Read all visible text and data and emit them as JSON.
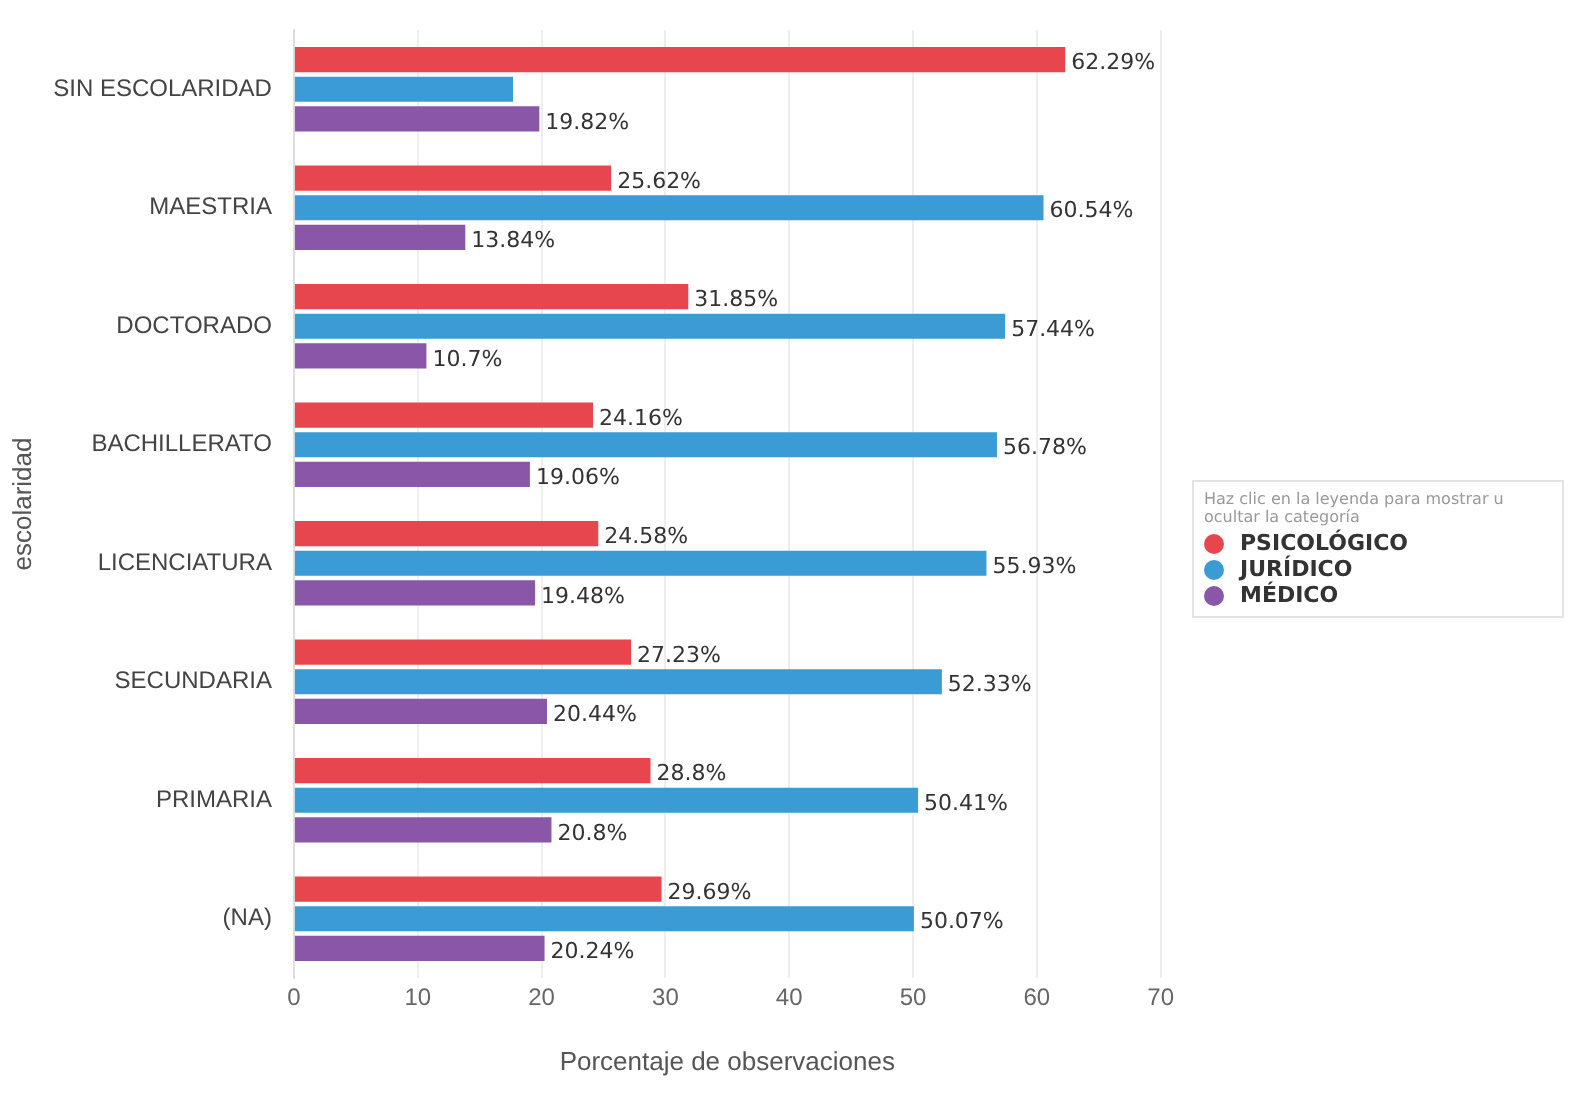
{
  "chart_data": {
    "type": "bar",
    "orientation": "horizontal",
    "xlabel": "Porcentaje de observaciones",
    "ylabel": "escolaridad",
    "legend_title": "Haz clic en la leyenda para mostrar u ocultar la categoría",
    "categories": [
      "SIN ESCOLARIDAD",
      "MAESTRIA",
      "DOCTORADO",
      "BACHILLERATO",
      "LICENCIATURA",
      "SECUNDARIA",
      "PRIMARIA",
      "(NA)"
    ],
    "series": [
      {
        "name": "PSICOLÓGICO",
        "color": "#e8464f",
        "values": [
          62.29,
          25.62,
          31.85,
          24.16,
          24.58,
          27.23,
          28.8,
          29.69
        ],
        "value_labels": [
          "62.29%",
          "25.62%",
          "31.85%",
          "24.16%",
          "24.58%",
          "27.23%",
          "28.8%",
          "29.69%"
        ]
      },
      {
        "name": "JURÍDICO",
        "color": "#3a9bd5",
        "values": [
          17.7,
          60.54,
          57.44,
          56.78,
          55.93,
          52.33,
          50.41,
          50.07
        ],
        "value_labels": [
          null,
          "60.54%",
          "57.44%",
          "56.78%",
          "55.93%",
          "52.33%",
          "50.41%",
          "50.07%"
        ]
      },
      {
        "name": "MÉDICO",
        "color": "#8a57a8",
        "values": [
          19.82,
          13.84,
          10.7,
          19.06,
          19.48,
          20.44,
          20.8,
          20.24
        ],
        "value_labels": [
          "19.82%",
          "13.84%",
          "10.7%",
          "19.06%",
          "19.48%",
          "20.44%",
          "20.8%",
          "20.24%"
        ]
      }
    ],
    "xlim": [
      0,
      70
    ],
    "xticks": [
      0,
      10,
      20,
      30,
      40,
      50,
      60,
      70
    ],
    "grid": "x",
    "legend": "right"
  }
}
